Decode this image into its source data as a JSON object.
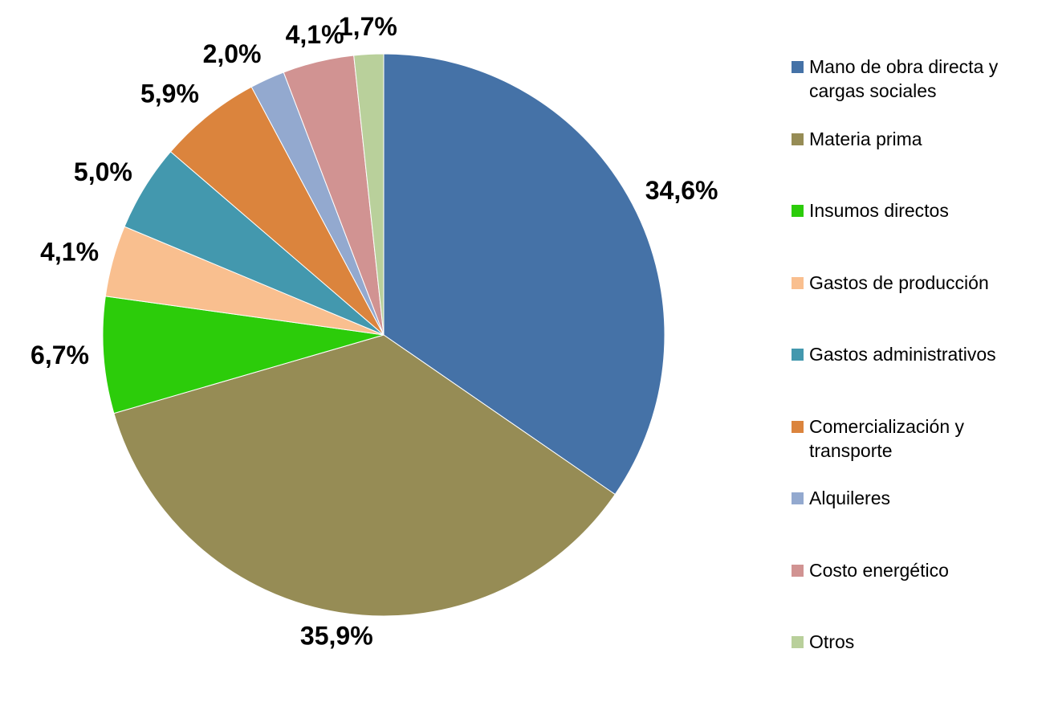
{
  "chart_data": {
    "type": "pie",
    "categories": [
      "Mano de obra directa y cargas sociales",
      "Materia prima",
      "Insumos directos",
      "Gastos de producción",
      "Gastos administrativos",
      "Comercialización y transporte",
      "Alquileres",
      "Costo energético",
      "Otros"
    ],
    "values": [
      34.6,
      35.9,
      6.7,
      4.1,
      5.0,
      5.9,
      2.0,
      4.1,
      1.7
    ],
    "value_labels": [
      "34,6%",
      "35,9%",
      "6,7%",
      "4,1%",
      "5,0%",
      "5,9%",
      "2,0%",
      "4,1%",
      "1,7%"
    ],
    "colors": [
      "#4572a7",
      "#968c55",
      "#2ccc0a",
      "#f9bf8f",
      "#4398ae",
      "#db843d",
      "#93a9cf",
      "#d19392",
      "#b9d09b"
    ],
    "legend": "right"
  }
}
